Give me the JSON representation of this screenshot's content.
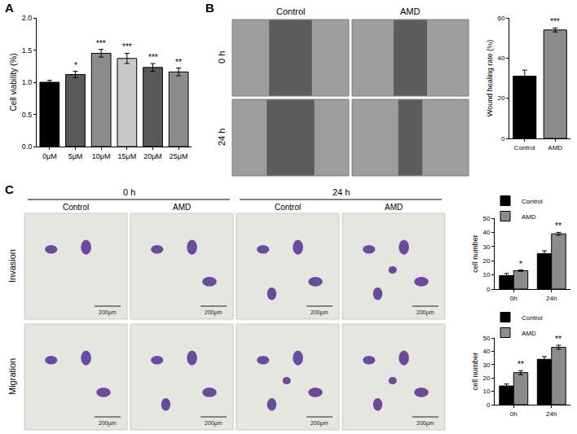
{
  "chart_data": [
    {
      "type": "bar",
      "y_label": "Cell viability (%)",
      "categories": [
        "0μM",
        "5μM",
        "10μM",
        "15μM",
        "20μM",
        "25μM"
      ],
      "values": [
        1.0,
        1.12,
        1.45,
        1.37,
        1.23,
        1.16
      ],
      "errors": [
        0.03,
        0.05,
        0.06,
        0.08,
        0.06,
        0.06
      ],
      "annotations": [
        null,
        "*",
        "***",
        "***",
        "***",
        "**"
      ],
      "colors": [
        "#000000",
        "#595959",
        "#8c8c8c",
        "#c8c8c8",
        "#595959",
        "#8c8c8c"
      ],
      "ylim": [
        0,
        2
      ],
      "yticks": [
        {
          "value": 0,
          "label": "0.0"
        },
        0.5,
        {
          "value": 1,
          "label": "1.0"
        },
        1.5,
        {
          "value": 2,
          "label": "2.0"
        }
      ],
      "grid": false
    },
    {
      "type": "bar",
      "y_label": "Wound healing rate (%)",
      "categories": [
        "Control",
        "AMD"
      ],
      "values": [
        31,
        54
      ],
      "errors": [
        3,
        1
      ],
      "annotations": [
        null,
        "***"
      ],
      "colors": [
        "#000000",
        "#8c8c8c"
      ],
      "ylim": [
        0,
        60
      ],
      "yticks": [
        0,
        20,
        40,
        60
      ],
      "grid": false
    },
    {
      "type": "bar",
      "y_label": "cell number",
      "categories": [
        "0h",
        "24h"
      ],
      "series": [
        {
          "name": "Control",
          "color": "#000000",
          "values": [
            9.5,
            25
          ],
          "errors": [
            1.5,
            2
          ],
          "annotations": [
            null,
            null
          ]
        },
        {
          "name": "AMD",
          "color": "#8c8c8c",
          "values": [
            13,
            39
          ],
          "errors": [
            0.5,
            1
          ],
          "annotations": [
            "*",
            "**"
          ]
        }
      ],
      "ylim": [
        0,
        50
      ],
      "yticks": [
        0,
        10,
        20,
        30,
        40,
        50
      ],
      "legend": "top",
      "grid": false
    },
    {
      "type": "bar",
      "y_label": "cell number",
      "categories": [
        "0h",
        "24h"
      ],
      "series": [
        {
          "name": "Control",
          "color": "#000000",
          "values": [
            14,
            34
          ],
          "errors": [
            1.5,
            2
          ],
          "annotations": [
            null,
            null
          ]
        },
        {
          "name": "AMD",
          "color": "#8c8c8c",
          "values": [
            24,
            43
          ],
          "errors": [
            1.5,
            1.5
          ],
          "annotations": [
            "**",
            "**"
          ]
        }
      ],
      "ylim": [
        0,
        50
      ],
      "yticks": [
        0,
        10,
        20,
        30,
        40,
        50
      ],
      "legend": "top",
      "grid": false
    }
  ],
  "figure": {
    "panel_letters": [
      "A",
      "B",
      "C"
    ],
    "B_images": {
      "columns": [
        "Control",
        "AMD"
      ],
      "rows": [
        "0 h",
        "24 h"
      ]
    },
    "C_images": {
      "groups": [
        "0 h",
        "24 h"
      ],
      "columns": [
        "Control",
        "AMD",
        "Control",
        "AMD"
      ],
      "rows": [
        "Invasion",
        "Migration"
      ],
      "scale_bar": "200μm"
    }
  }
}
